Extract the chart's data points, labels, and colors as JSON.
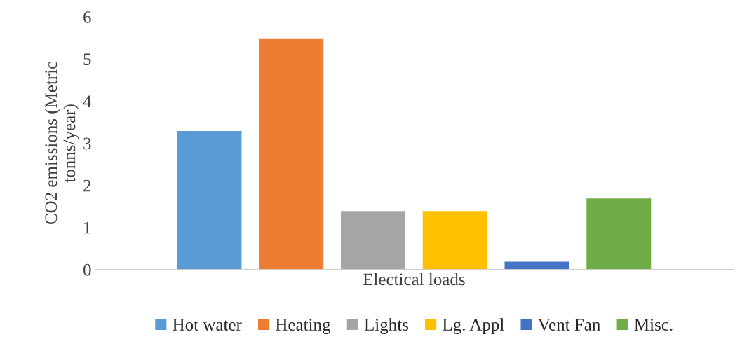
{
  "chart_data": {
    "type": "bar",
    "ylabel": "CO2 emissions (Metric tonns/year)",
    "categories": [
      "Electical loads"
    ],
    "series": [
      {
        "name": "Hot water",
        "color": "#5b9bd5",
        "values": [
          3.3
        ]
      },
      {
        "name": "Heating",
        "color": "#ed7d31",
        "values": [
          5.5
        ]
      },
      {
        "name": "Lights",
        "color": "#a5a5a5",
        "values": [
          1.4
        ]
      },
      {
        "name": "Lg. Appl",
        "color": "#ffc000",
        "values": [
          1.4
        ]
      },
      {
        "name": "Vent Fan",
        "color": "#4472c4",
        "values": [
          0.2
        ]
      },
      {
        "name": "Misc.",
        "color": "#70ad47",
        "values": [
          1.7
        ]
      }
    ],
    "ylim": [
      0,
      6
    ],
    "yticks": [
      0,
      1,
      2,
      3,
      4,
      5,
      6
    ],
    "grid": false,
    "legend": "bottom"
  }
}
